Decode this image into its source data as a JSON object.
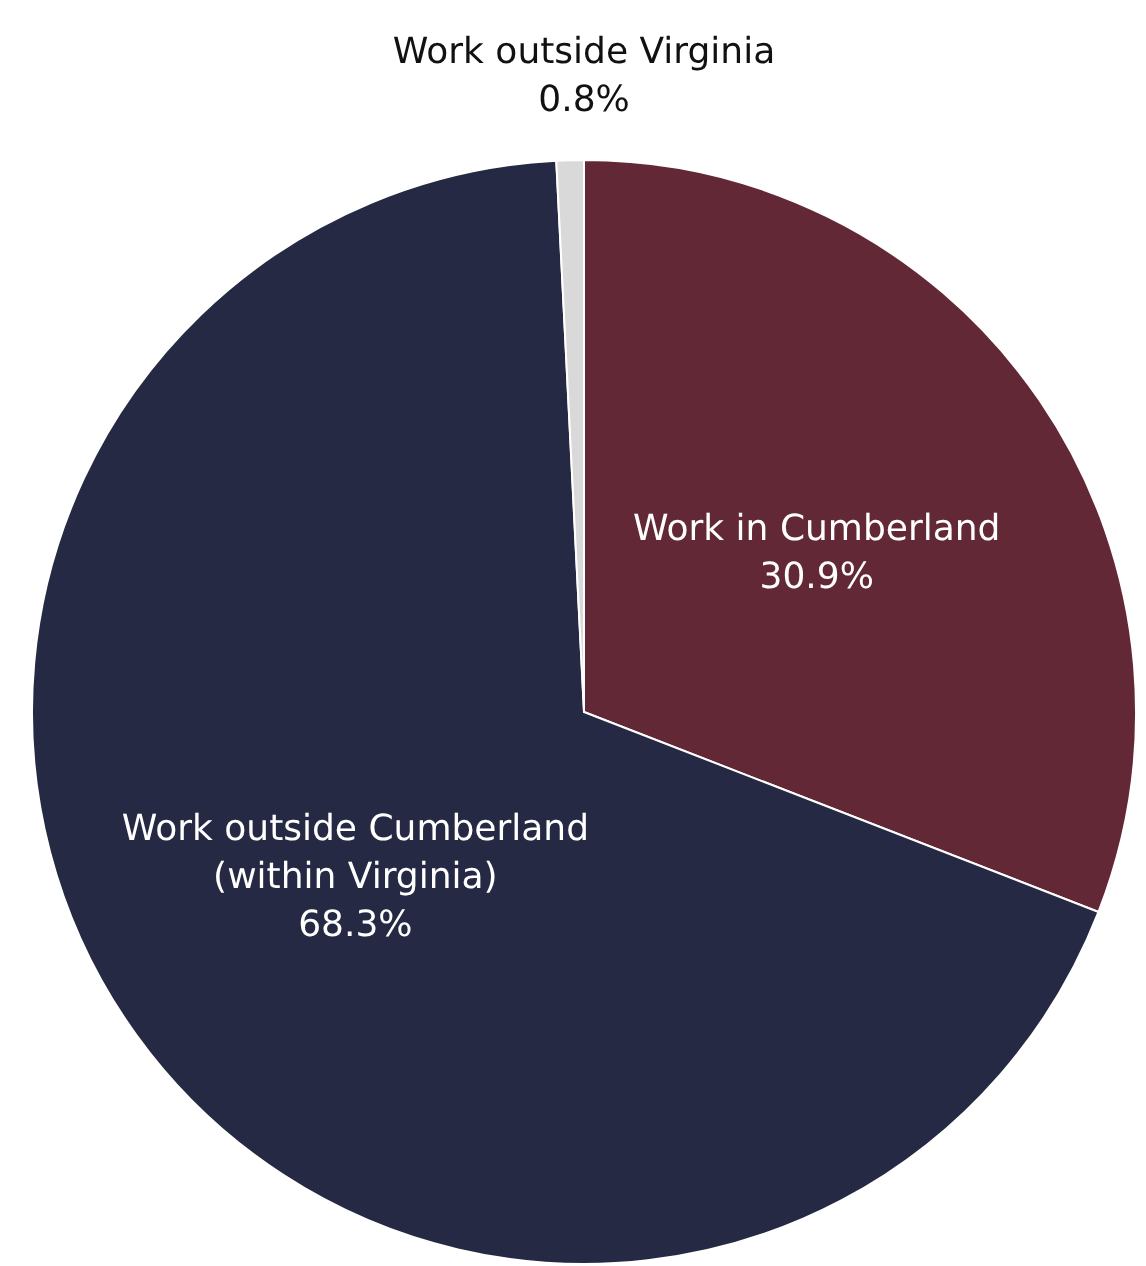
{
  "chart_data": {
    "type": "pie",
    "categories": [
      "Work in Cumberland",
      "Work outside Cumberland\n(within Virginia)",
      "Work outside Virginia"
    ],
    "values": [
      30.9,
      68.3,
      0.8
    ],
    "colors": [
      "#622836",
      "#252943",
      "#d9d9d9"
    ],
    "value_labels": [
      "30.9%",
      "68.3%",
      "0.8%"
    ],
    "legend": false
  }
}
